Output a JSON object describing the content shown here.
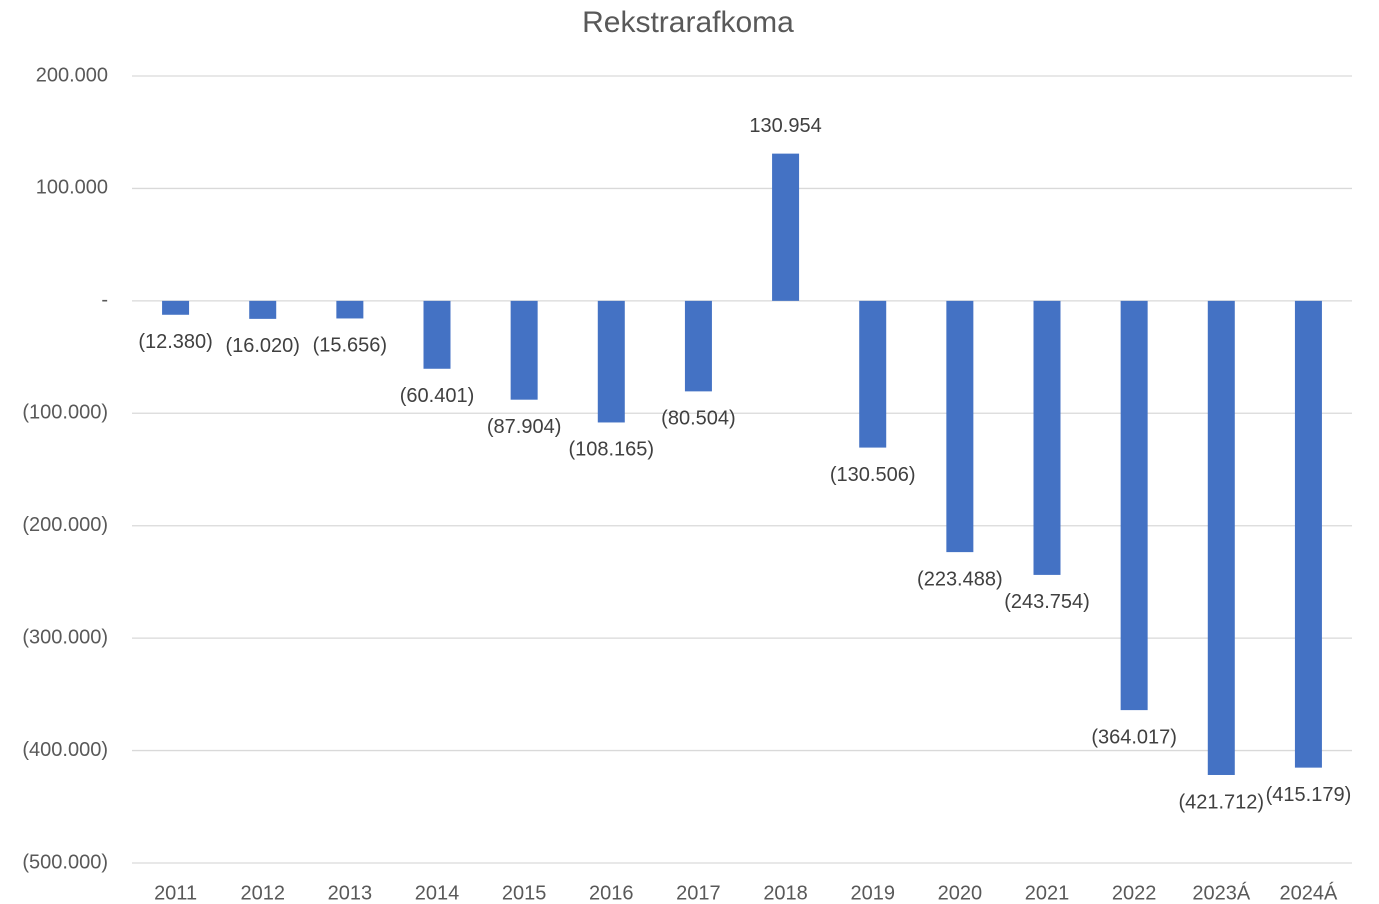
{
  "chart_data": {
    "type": "bar",
    "title": "Rekstrarafkoma",
    "categories": [
      "2011",
      "2012",
      "2013",
      "2014",
      "2015",
      "2016",
      "2017",
      "2018",
      "2019",
      "2020",
      "2021",
      "2022",
      "2023Á",
      "2024Á"
    ],
    "values": [
      -12380,
      -16020,
      -15656,
      -60401,
      -87904,
      -108165,
      -80504,
      130954,
      -130506,
      -223488,
      -243754,
      -364017,
      -421712,
      -415179
    ],
    "value_labels": [
      "(12.380)",
      "(16.020)",
      "(15.656)",
      "(60.401)",
      "(87.904)",
      "(108.165)",
      "(80.504)",
      "130.954",
      "(130.506)",
      "(223.488)",
      "(243.754)",
      "(364.017)",
      "(421.712)",
      "(415.179)"
    ],
    "color": "#4472c4",
    "ylim": [
      -500000,
      200000
    ],
    "yticks": [
      {
        "value": 200000,
        "label": "200.000"
      },
      {
        "value": 100000,
        "label": "100.000"
      },
      {
        "value": 0,
        "label": "-"
      },
      {
        "value": -100000,
        "label": "(100.000)"
      },
      {
        "value": -200000,
        "label": "(200.000)"
      },
      {
        "value": -300000,
        "label": "(300.000)"
      },
      {
        "value": -400000,
        "label": "(400.000)"
      },
      {
        "value": -500000,
        "label": "(500.000)"
      }
    ],
    "grid": true
  }
}
